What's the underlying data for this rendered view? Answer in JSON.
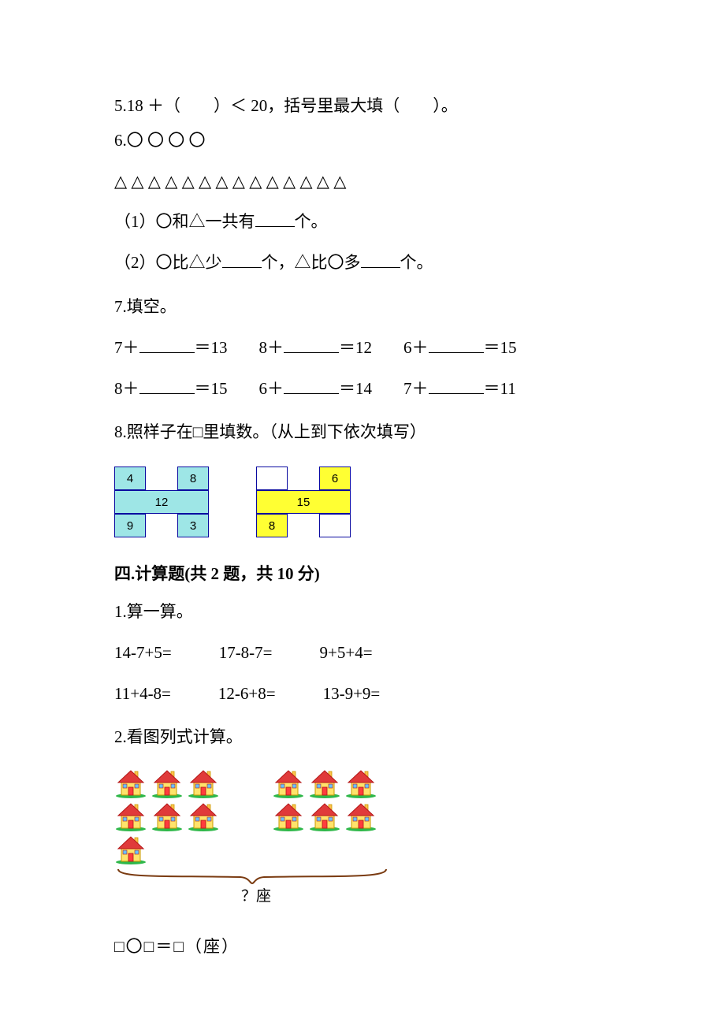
{
  "q5": {
    "text_a": "5.18 ＋（　　）＜ 20，括号里最大填（　　）。"
  },
  "q6": {
    "heading": "6.〇 〇 〇 〇",
    "triangles": "△ △ △ △ △ △ △ △ △ △ △ △ △ △",
    "sub1_a": "（1）〇和△一共有",
    "sub1_b": "个。",
    "sub2_a": "（2）〇比△少",
    "sub2_b": "个，△比〇多",
    "sub2_c": "个。"
  },
  "q7": {
    "heading": "7.填空。",
    "rows": [
      [
        {
          "lhs": "7＋",
          "rhs": "＝13"
        },
        {
          "lhs": "8＋",
          "rhs": "＝12"
        },
        {
          "lhs": "6＋",
          "rhs": "＝15"
        }
      ],
      [
        {
          "lhs": "8＋",
          "rhs": "＝15"
        },
        {
          "lhs": "6＋",
          "rhs": "＝14"
        },
        {
          "lhs": "7＋",
          "rhs": "＝11"
        }
      ]
    ]
  },
  "q8": {
    "heading": "8.照样子在□里填数。（从上到下依次填写）",
    "puzzle1": {
      "tl": "4",
      "tr": "8",
      "mid": "12",
      "bl": "9",
      "br": "3",
      "fill_tl": "#9ee6e6",
      "fill_tr": "#9ee6e6",
      "fill_mid": "#9ee6e6",
      "fill_bl": "#9ee6e6",
      "fill_br": "#9ee6e6",
      "border": "#0a0aa0"
    },
    "puzzle2": {
      "tl": "",
      "tr": "6",
      "mid": "15",
      "bl": "8",
      "br": "",
      "fill_tl": "#ffffff",
      "fill_tr": "#ffff33",
      "fill_mid": "#ffff33",
      "fill_bl": "#ffff33",
      "fill_br": "#ffffff",
      "border": "#0a0aa0"
    }
  },
  "section4": {
    "heading": "四.计算题(共 2 题，共 10 分)"
  },
  "s4q1": {
    "heading": "1.算一算。",
    "rows": [
      [
        "14-7+5=",
        "17-8-7=",
        "9+5+4="
      ],
      [
        "11+4-8=",
        "12-6+8=",
        "13-9+9="
      ]
    ]
  },
  "s4q2": {
    "heading": "2.看图列式计算。",
    "left_count": 7,
    "right_count": 6,
    "brace_label": "？座",
    "equation": "□〇□＝□（座）",
    "house": {
      "roof": "#e03a3a",
      "roof_edge": "#b31616",
      "wall": "#ffe36b",
      "wall_edge": "#c99a00",
      "door": "#ff3d3d",
      "window": "#66c2ff",
      "chimney": "#ffc34d",
      "grass": "#2fb84a"
    },
    "brace_color": "#7a3b11"
  }
}
